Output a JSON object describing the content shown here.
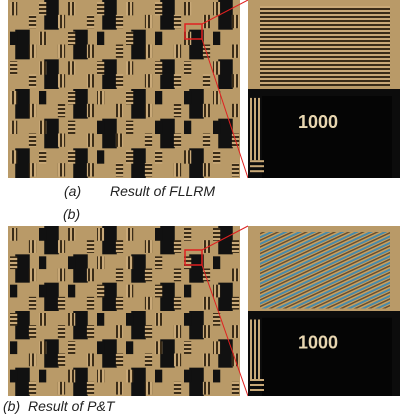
{
  "panels": [
    {
      "label": "(a)",
      "caption": "Result of FLLRM",
      "zoom_text": "1000"
    },
    {
      "label": "(b)",
      "caption": "Result of P&T",
      "zoom_text": "1000"
    }
  ],
  "stray_label": "(b)"
}
